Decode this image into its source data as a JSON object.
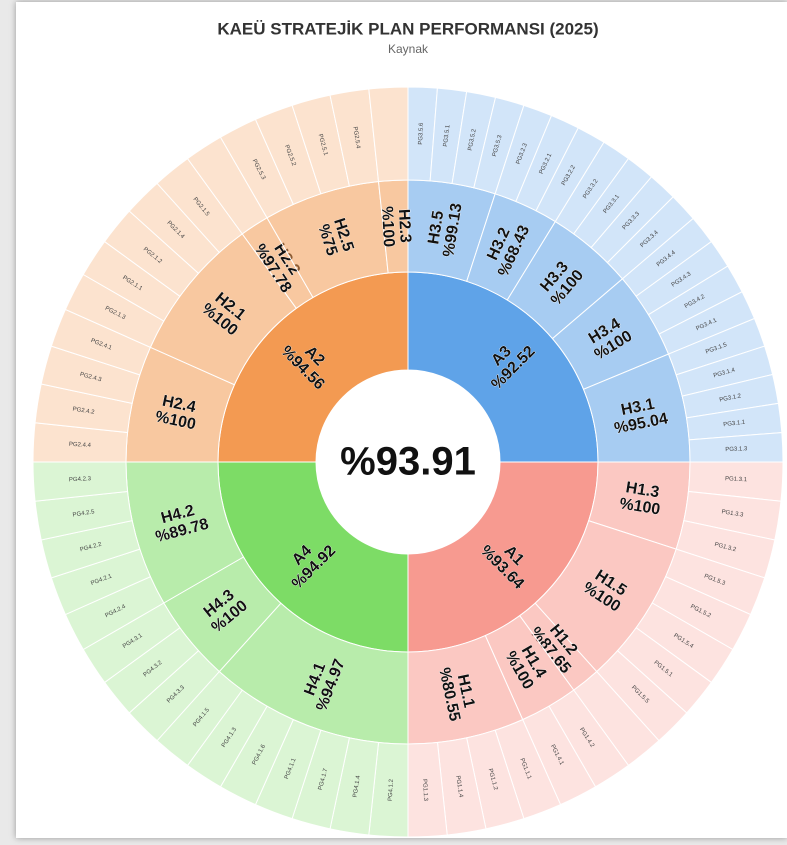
{
  "chart_data": {
    "type": "sunburst",
    "title": "KAEÜ STRATEJİK PLAN PERFORMANSI (2025)",
    "subtitle": "Kaynak",
    "value": 93.91,
    "value_label": "%93.91",
    "children": [
      {
        "name": "A3",
        "value": 92.52,
        "value_label": "%92.52",
        "color": "#5fa3e8",
        "children": [
          {
            "name": "H3.5",
            "value": 99.13,
            "value_label": "%99.13",
            "children": [
              "PG3.5.6",
              "PG3.5.1",
              "PG3.5.2",
              "PG3.5.3"
            ]
          },
          {
            "name": "H3.2",
            "value": 68.43,
            "value_label": "%68.43",
            "children": [
              "PG3.2.3",
              "PG3.2.1",
              "PG3.2.2"
            ]
          },
          {
            "name": "H3.3",
            "value": 100,
            "value_label": "%100",
            "children": [
              "PG3.3.2",
              "PG3.3.1",
              "PG3.3.3",
              "PG3.3.4"
            ]
          },
          {
            "name": "H3.4",
            "value": 100,
            "value_label": "%100",
            "children": [
              "PG3.4.4",
              "PG3.4.3",
              "PG3.4.2",
              "PG3.4.1"
            ]
          },
          {
            "name": "H3.1",
            "value": 95.04,
            "value_label": "%95.04",
            "children": [
              "PG3.1.5",
              "PG3.1.4",
              "PG3.1.2",
              "PG3.1.1",
              "PG3.1.3"
            ]
          }
        ]
      },
      {
        "name": "A1",
        "value": 93.64,
        "value_label": "%93.64",
        "color": "#f79a90",
        "children": [
          {
            "name": "H1.3",
            "value": 100,
            "value_label": "%100",
            "children": [
              "PG1.3.1",
              "PG1.3.3",
              "PG1.3.2"
            ]
          },
          {
            "name": "H1.5",
            "value": 100,
            "value_label": "%100",
            "children": [
              "PG1.5.3",
              "PG1.5.2",
              "PG1.5.4",
              "PG1.5.1",
              "PG1.5.5"
            ]
          },
          {
            "name": "H1.2",
            "value": 87.65,
            "value_label": "%87.65",
            "children": []
          },
          {
            "name": "H1.4",
            "value": 100,
            "value_label": "%100",
            "children": [
              "PG1.4.2",
              "PG1.4.1"
            ]
          },
          {
            "name": "H1.1",
            "value": 80.55,
            "value_label": "%80.55",
            "children": [
              "PG1.1.1",
              "PG1.1.2",
              "PG1.1.4",
              "PG1.1.3"
            ]
          }
        ]
      },
      {
        "name": "A4",
        "value": 94.92,
        "value_label": "%94.92",
        "color": "#7ddc66",
        "children": [
          {
            "name": "H4.1",
            "value": 94.97,
            "value_label": "%94.97",
            "children": [
              "PG4.1.2",
              "PG4.1.4",
              "PG4.1.7",
              "PG4.1.1",
              "PG4.1.6",
              "PG4.1.3",
              "PG4.1.5"
            ]
          },
          {
            "name": "H4.3",
            "value": 100,
            "value_label": "%100",
            "children": [
              "PG4.3.3",
              "PG4.3.2",
              "PG4.3.1"
            ]
          },
          {
            "name": "H4.2",
            "value": 89.78,
            "value_label": "%89.78",
            "children": [
              "PG4.2.4",
              "PG4.2.1",
              "PG4.2.2",
              "PG4.2.5",
              "PG4.2.3"
            ]
          }
        ]
      },
      {
        "name": "A2",
        "value": 94.56,
        "value_label": "%94.56",
        "color": "#f39a52",
        "children": [
          {
            "name": "H2.4",
            "value": 100,
            "value_label": "%100",
            "children": [
              "PG2.4.4",
              "PG2.4.2",
              "PG2.4.3",
              "PG2.4.1"
            ]
          },
          {
            "name": "H2.1",
            "value": 100,
            "value_label": "%100",
            "children": [
              "PG2.1.3",
              "PG2.1.1",
              "PG2.1.2",
              "PG2.1.4",
              "PG2.1.5"
            ]
          },
          {
            "name": "H2.2",
            "value": 97.78,
            "value_label": "%97.78",
            "children": []
          },
          {
            "name": "H2.5",
            "value": 75,
            "value_label": "%75",
            "children": [
              "PG2.5.3",
              "PG2.5.2",
              "PG2.5.1",
              "PG2.5.4"
            ]
          },
          {
            "name": "H2.3",
            "value": 100,
            "value_label": "%100",
            "children": []
          }
        ]
      }
    ]
  }
}
